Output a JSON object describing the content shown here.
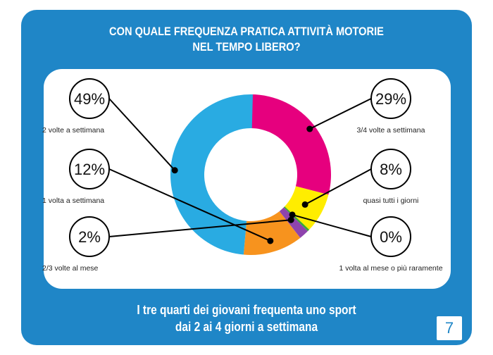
{
  "title_line1": "CON QUALE FREQUENZA PRATICA ATTIVITÀ MOTORIE",
  "title_line2": "NEL TEMPO LIBERO?",
  "subtitle_line1": "I tre quarti dei giovani frequenta uno sport",
  "subtitle_line2": "dai 2 ai 4 giorni a settimana",
  "page_number": "7",
  "colors": {
    "background": "#1f86c7",
    "panel": "#ffffff"
  },
  "chart_data": {
    "type": "pie",
    "variant": "donut",
    "slices": [
      {
        "label": "3/4 volte a settimana",
        "value": 29,
        "value_label": "29%",
        "color": "#e6007e"
      },
      {
        "label": "quasi tutti i giorni",
        "value": 8,
        "value_label": "8%",
        "color": "#ffed00"
      },
      {
        "label": "1 volta al mese o più raramente",
        "value": 0,
        "value_label": "0%",
        "color": "#3aa935"
      },
      {
        "label": "2/3 volte al mese",
        "value": 2,
        "value_label": "2%",
        "color": "#8e44ad"
      },
      {
        "label": "1 volta a settimana",
        "value": 12,
        "value_label": "12%",
        "color": "#f7931e"
      },
      {
        "label": "2 volte a settimana",
        "value": 49,
        "value_label": "49%",
        "color": "#29abe2"
      }
    ]
  }
}
